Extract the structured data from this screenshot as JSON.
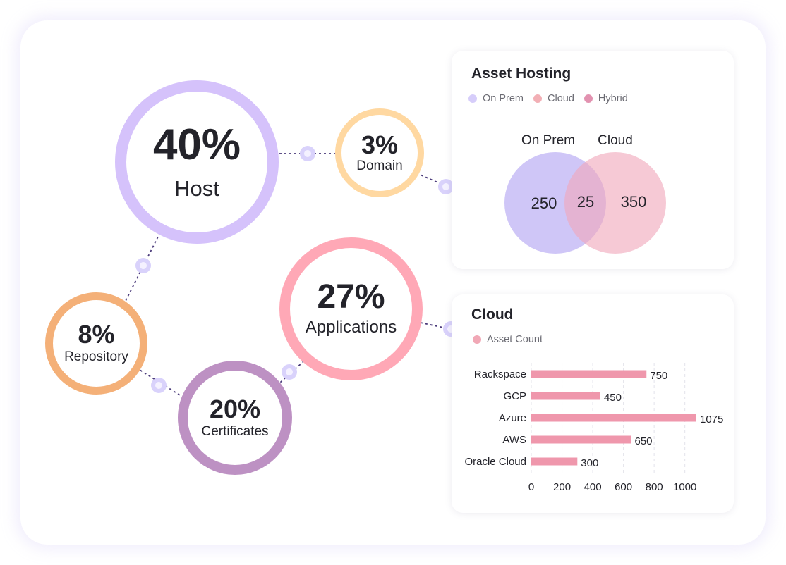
{
  "colors": {
    "host": "#d5c2fb",
    "domain": "#ffd8a1",
    "applications": "#ffa8b6",
    "repository": "#f4b078",
    "certificates": "#bd91c3",
    "connector_line": "#4a3a7a",
    "connector_dot": "#d9d2fb",
    "on_prem": "#c7bcf6",
    "cloud": "#f1a8bc",
    "hybrid": "#dd8bab",
    "bar": "#ef97ac"
  },
  "stats": {
    "host": {
      "pct": "40%",
      "label": "Host"
    },
    "domain": {
      "pct": "3%",
      "label": "Domain"
    },
    "applications": {
      "pct": "27%",
      "label": "Applications"
    },
    "repository": {
      "pct": "8%",
      "label": "Repository"
    },
    "certificates": {
      "pct": "20%",
      "label": "Certificates"
    }
  },
  "asset_hosting": {
    "title": "Asset Hosting",
    "legend": [
      {
        "name": "On Prem",
        "color": "#c7bcf6"
      },
      {
        "name": "Cloud",
        "color": "#f1a8bc"
      },
      {
        "name": "Hybrid",
        "color": "#dd8bab"
      }
    ],
    "venn": {
      "left_label": "On Prem",
      "right_label": "Cloud",
      "left_value": "250",
      "overlap_value": "25",
      "right_value": "350"
    }
  },
  "cloud": {
    "title": "Cloud",
    "legend": [
      {
        "name": "Asset Count",
        "color": "#f1a8b6"
      }
    ]
  },
  "chart_data": {
    "type": "bar",
    "orientation": "horizontal",
    "categories": [
      "Rackspace",
      "GCP",
      "Azure",
      "AWS",
      "Oracle Cloud"
    ],
    "series": [
      {
        "name": "Asset Count",
        "values": [
          750,
          450,
          1075,
          650,
          300
        ]
      }
    ],
    "xlim": [
      0,
      1075
    ],
    "xticks": [
      0,
      200,
      400,
      600,
      800,
      1000
    ],
    "grid": "vertical dashed",
    "legend": "top-left"
  }
}
